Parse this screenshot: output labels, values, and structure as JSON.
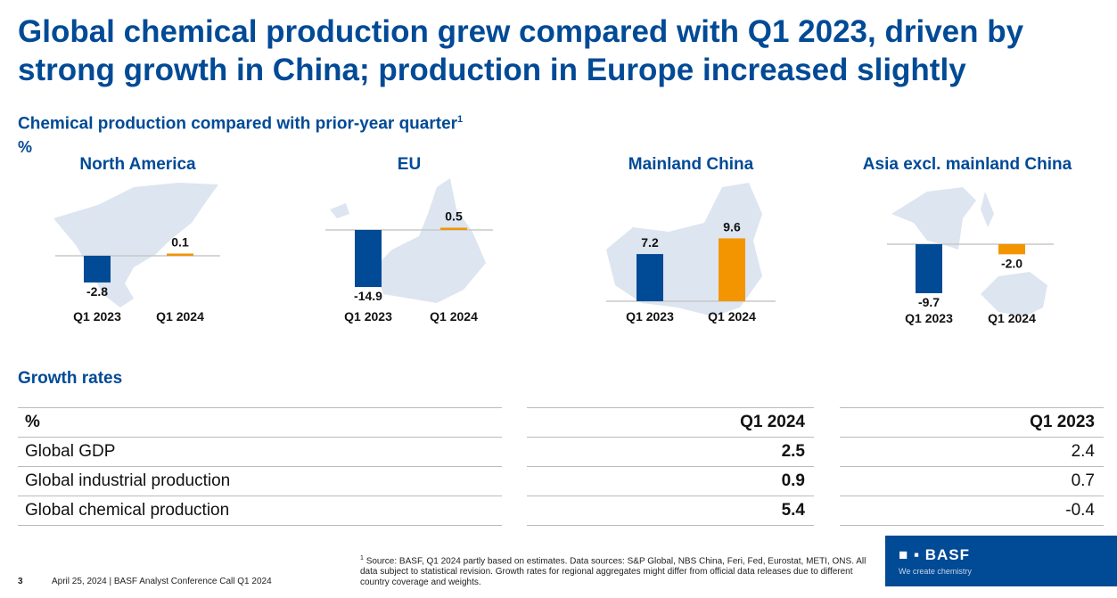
{
  "title": "Global chemical production grew compared with Q1 2023, driven by strong growth in China; production in Europe increased slightly",
  "subtitle": "Chemical production compared with prior-year quarter",
  "subtitle_footnote": "1",
  "unit": "%",
  "colors": {
    "brand": "#004a96",
    "q1_2023": "#004a96",
    "q1_2024": "#f39500",
    "map": "#dce5f0"
  },
  "chart_data": [
    {
      "type": "bar",
      "title": "North America",
      "categories": [
        "Q1 2023",
        "Q1 2024"
      ],
      "values": [
        -2.8,
        0.1
      ],
      "labels": [
        "-2.8",
        "0.1"
      ]
    },
    {
      "type": "bar",
      "title": "EU",
      "categories": [
        "Q1 2023",
        "Q1 2024"
      ],
      "values": [
        -14.9,
        0.5
      ],
      "labels": [
        "-14.9",
        "0.5"
      ]
    },
    {
      "type": "bar",
      "title": "Mainland China",
      "categories": [
        "Q1 2023",
        "Q1 2024"
      ],
      "values": [
        7.2,
        9.6
      ],
      "labels": [
        "7.2",
        "9.6"
      ]
    },
    {
      "type": "bar",
      "title": "Asia excl. mainland China",
      "categories": [
        "Q1 2023",
        "Q1 2024"
      ],
      "values": [
        -9.7,
        -2.0
      ],
      "labels": [
        "-9.7",
        "-2.0"
      ]
    }
  ],
  "growth": {
    "title": "Growth rates",
    "headers": [
      "%",
      "Q1 2024",
      "Q1 2023"
    ],
    "rows": [
      {
        "label": "Global GDP",
        "q1_2024": "2.5",
        "q1_2023": "2.4"
      },
      {
        "label": "Global industrial production",
        "q1_2024": "0.9",
        "q1_2023": "0.7"
      },
      {
        "label": "Global chemical production",
        "q1_2024": "5.4",
        "q1_2023": "-0.4"
      }
    ]
  },
  "footnote": {
    "marker": "1",
    "text": "Source: BASF, Q1 2024 partly based on estimates. Data sources: S&P Global, NBS China, Feri, Fed, Eurostat, METI, ONS. All data subject to statistical revision. Growth rates for regional aggregates might differ from official data releases due to different country coverage and weights."
  },
  "footer": {
    "page": "3",
    "text": "April 25, 2024 | BASF Analyst Conference Call Q1 2024"
  },
  "logo": {
    "word": "BASF",
    "tagline": "We create chemistry"
  }
}
